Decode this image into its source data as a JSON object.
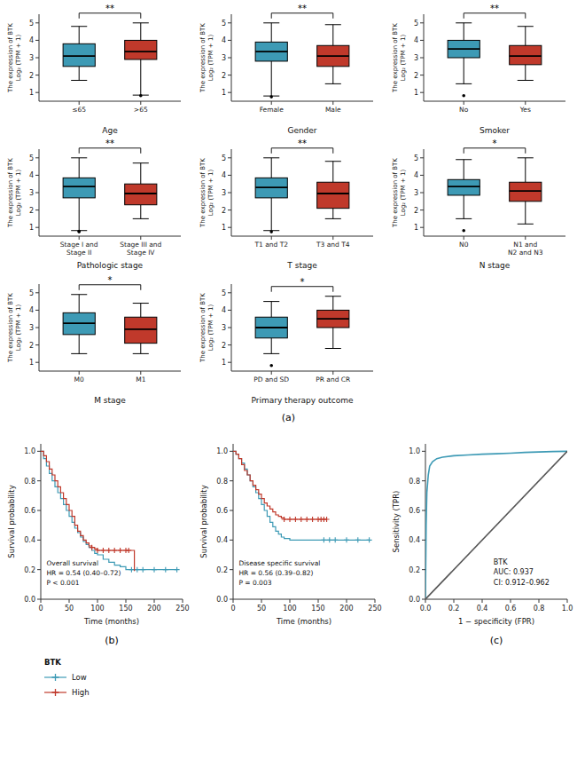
{
  "chart_data": [
    {
      "type": "box",
      "xlabel": "Age",
      "ylabel": "The expression of BTK\nLog₂ (TPM + 1)",
      "panel_label": "(a)",
      "categories": [
        "≤65",
        ">65"
      ],
      "colors": [
        "#3d9ab5",
        "#c0392b"
      ],
      "medians": [
        3.1,
        3.35
      ],
      "q1": [
        2.5,
        2.9
      ],
      "q3": [
        3.8,
        4.0
      ],
      "whislo": [
        1.7,
        0.85
      ],
      "whishi": [
        4.8,
        5.0
      ],
      "fliers": [
        [],
        [
          0.82
        ]
      ],
      "annotations": [
        "**"
      ],
      "ylim": [
        0.5,
        5.5
      ],
      "yticks": [
        1,
        2,
        3,
        4,
        5
      ]
    },
    {
      "type": "box",
      "xlabel": "Gender",
      "ylabel": "The expression of BTK\nLog₂ (TPM + 1)",
      "categories": [
        "Female",
        "Male"
      ],
      "colors": [
        "#3d9ab5",
        "#c0392b"
      ],
      "medians": [
        3.35,
        3.1
      ],
      "q1": [
        2.8,
        2.5
      ],
      "q3": [
        3.9,
        3.7
      ],
      "whislo": [
        0.8,
        1.5
      ],
      "whishi": [
        5.0,
        4.9
      ],
      "fliers": [
        [
          0.75
        ],
        []
      ],
      "annotations": [
        "**"
      ],
      "ylim": [
        0.5,
        5.5
      ],
      "yticks": [
        1,
        2,
        3,
        4,
        5
      ]
    },
    {
      "type": "box",
      "xlabel": "Smoker",
      "ylabel": "The expression of BTK\nLog₂ (TPM + 1)",
      "categories": [
        "No",
        "Yes"
      ],
      "colors": [
        "#3d9ab5",
        "#c0392b"
      ],
      "medians": [
        3.5,
        3.1
      ],
      "q1": [
        3.0,
        2.6
      ],
      "q3": [
        4.0,
        3.7
      ],
      "whislo": [
        1.5,
        1.7
      ],
      "whishi": [
        5.0,
        4.8
      ],
      "fliers": [
        [
          0.82
        ],
        []
      ],
      "annotations": [
        "**"
      ],
      "ylim": [
        0.5,
        5.5
      ],
      "yticks": [
        1,
        2,
        3,
        4,
        5
      ]
    },
    {
      "type": "box",
      "xlabel": "Pathologic stage",
      "ylabel": "The expression of BTK\nLog₂ (TPM + 1)",
      "categories": [
        "Stage I and\nStage II",
        "Stage III and\nStage IV"
      ],
      "colors": [
        "#3d9ab5",
        "#c0392b"
      ],
      "medians": [
        3.35,
        2.95
      ],
      "q1": [
        2.7,
        2.3
      ],
      "q3": [
        3.85,
        3.5
      ],
      "whislo": [
        0.82,
        1.5
      ],
      "whishi": [
        5.0,
        4.7
      ],
      "fliers": [
        [
          0.75,
          0.78
        ],
        []
      ],
      "annotations": [
        "**"
      ],
      "ylim": [
        0.5,
        5.5
      ],
      "yticks": [
        1,
        2,
        3,
        4,
        5
      ]
    },
    {
      "type": "box",
      "xlabel": "T stage",
      "ylabel": "The expression of BTK\nLog₂ (TPM + 1)",
      "categories": [
        "T1 and T2",
        "T3 and T4"
      ],
      "colors": [
        "#3d9ab5",
        "#c0392b"
      ],
      "medians": [
        3.3,
        2.95
      ],
      "q1": [
        2.7,
        2.1
      ],
      "q3": [
        3.85,
        3.6
      ],
      "whislo": [
        0.82,
        1.5
      ],
      "whishi": [
        5.0,
        4.8
      ],
      "fliers": [
        [
          0.75
        ],
        []
      ],
      "annotations": [
        "**"
      ],
      "ylim": [
        0.5,
        5.5
      ],
      "yticks": [
        1,
        2,
        3,
        4,
        5
      ]
    },
    {
      "type": "box",
      "xlabel": "N stage",
      "ylabel": "The expression of BTK\nLog₂ (TPM + 1)",
      "categories": [
        "N0",
        "N1 and\nN2 and N3"
      ],
      "colors": [
        "#3d9ab5",
        "#c0392b"
      ],
      "medians": [
        3.35,
        3.1
      ],
      "q1": [
        2.85,
        2.5
      ],
      "q3": [
        3.75,
        3.6
      ],
      "whislo": [
        1.5,
        1.2
      ],
      "whishi": [
        4.9,
        5.0
      ],
      "fliers": [
        [
          0.82
        ],
        []
      ],
      "annotations": [
        "*"
      ],
      "ylim": [
        0.5,
        5.5
      ],
      "yticks": [
        1,
        2,
        3,
        4,
        5
      ]
    },
    {
      "type": "box",
      "xlabel": "M stage",
      "ylabel": "The expression of BTK\nLog₂ (TPM + 1)",
      "categories": [
        "M0",
        "M1"
      ],
      "colors": [
        "#3d9ab5",
        "#c0392b"
      ],
      "medians": [
        3.25,
        2.9
      ],
      "q1": [
        2.6,
        2.1
      ],
      "q3": [
        3.85,
        3.6
      ],
      "whislo": [
        1.5,
        1.5
      ],
      "whishi": [
        4.9,
        4.4
      ],
      "fliers": [
        [],
        []
      ],
      "annotations": [
        "*"
      ],
      "ylim": [
        0.5,
        5.5
      ],
      "yticks": [
        1,
        2,
        3,
        4,
        5
      ]
    },
    {
      "type": "box",
      "xlabel": "Primary therapy outcome",
      "ylabel": "The expression of BTK\nLog₂ (TPM + 1)",
      "categories": [
        "PD and SD",
        "PR and CR"
      ],
      "colors": [
        "#3d9ab5",
        "#c0392b"
      ],
      "medians": [
        3.0,
        3.5
      ],
      "q1": [
        2.4,
        3.0
      ],
      "q3": [
        3.6,
        4.0
      ],
      "whislo": [
        1.5,
        1.8
      ],
      "whishi": [
        4.5,
        4.8
      ],
      "fliers": [
        [
          0.82
        ],
        []
      ],
      "annotations": [
        "*"
      ],
      "ylim": [
        0.5,
        5.5
      ],
      "yticks": [
        1,
        2,
        3,
        4,
        5
      ]
    },
    {
      "type": "step",
      "xlabel": "Time (months)",
      "ylabel": "Survival probability",
      "panel_label": "(b)",
      "annotations": [
        "Overall survival\nHR = 0.54 (0.40–0.72)\nP < 0.001"
      ],
      "legend": "below",
      "legend_title": "BTK",
      "xlim": [
        0,
        250
      ],
      "ylim": [
        0,
        1.05
      ],
      "xticks": [
        0,
        50,
        100,
        150,
        200,
        250
      ],
      "yticks": [
        {
          "value": 0,
          "label": "0.0"
        },
        0.2,
        0.4,
        0.6,
        0.8,
        {
          "value": 1,
          "label": "1.0"
        }
      ],
      "series": [
        {
          "name": "Low",
          "color": "#3d9ab5",
          "marker": "plus",
          "x": [
            0,
            5,
            10,
            15,
            20,
            25,
            30,
            35,
            40,
            45,
            50,
            55,
            60,
            65,
            70,
            75,
            80,
            85,
            90,
            95,
            100,
            110,
            120,
            130,
            140,
            150,
            160,
            170,
            180,
            200,
            220,
            240
          ],
          "values": [
            1.0,
            0.95,
            0.9,
            0.85,
            0.8,
            0.76,
            0.72,
            0.68,
            0.64,
            0.6,
            0.56,
            0.52,
            0.48,
            0.45,
            0.42,
            0.39,
            0.37,
            0.35,
            0.33,
            0.31,
            0.3,
            0.27,
            0.25,
            0.23,
            0.22,
            0.2,
            0.2,
            0.2,
            0.2,
            0.2,
            0.2,
            0.2
          ],
          "censor_x": [
            160,
            170,
            180,
            200,
            220,
            240
          ],
          "censor_y": [
            0.2,
            0.2,
            0.2,
            0.2,
            0.2,
            0.2
          ]
        },
        {
          "name": "High",
          "color": "#c0392b",
          "marker": "plus",
          "x": [
            0,
            5,
            10,
            15,
            20,
            25,
            30,
            35,
            40,
            45,
            50,
            55,
            60,
            65,
            70,
            75,
            80,
            85,
            90,
            95,
            100,
            110,
            120,
            130,
            140,
            150,
            155,
            160,
            165
          ],
          "values": [
            1.0,
            0.97,
            0.93,
            0.88,
            0.84,
            0.8,
            0.76,
            0.72,
            0.68,
            0.64,
            0.6,
            0.56,
            0.5,
            0.46,
            0.43,
            0.4,
            0.38,
            0.36,
            0.35,
            0.34,
            0.33,
            0.33,
            0.33,
            0.33,
            0.33,
            0.33,
            0.33,
            0.33,
            0.19
          ],
          "censor_x": [
            90,
            100,
            110,
            120,
            130,
            140,
            150,
            155
          ],
          "censor_y": [
            0.35,
            0.33,
            0.33,
            0.33,
            0.33,
            0.33,
            0.33,
            0.33
          ]
        }
      ]
    },
    {
      "type": "step",
      "xlabel": "Time (months)",
      "ylabel": "Survival probability",
      "annotations": [
        "Disease specific survival\nHR = 0.56 (0.39–0.82)\nP = 0.003"
      ],
      "xlim": [
        0,
        250
      ],
      "ylim": [
        0,
        1.05
      ],
      "xticks": [
        0,
        50,
        100,
        150,
        200,
        250
      ],
      "yticks": [
        {
          "value": 0,
          "label": "0.0"
        },
        0.2,
        0.4,
        0.6,
        0.8,
        {
          "value": 1,
          "label": "1.0"
        }
      ],
      "series": [
        {
          "color": "#3d9ab5",
          "marker": "plus",
          "x": [
            0,
            5,
            10,
            15,
            20,
            25,
            30,
            35,
            40,
            45,
            50,
            55,
            60,
            65,
            70,
            75,
            80,
            85,
            90,
            100,
            110,
            120,
            130,
            140,
            150,
            160,
            170,
            180,
            200,
            220,
            240
          ],
          "values": [
            1.0,
            0.98,
            0.95,
            0.92,
            0.88,
            0.84,
            0.8,
            0.76,
            0.72,
            0.68,
            0.64,
            0.6,
            0.56,
            0.52,
            0.49,
            0.46,
            0.44,
            0.42,
            0.41,
            0.4,
            0.4,
            0.4,
            0.4,
            0.4,
            0.4,
            0.4,
            0.4,
            0.4,
            0.4,
            0.4,
            0.4
          ],
          "censor_x": [
            160,
            170,
            180,
            200,
            220,
            240
          ],
          "censor_y": [
            0.4,
            0.4,
            0.4,
            0.4,
            0.4,
            0.4
          ]
        },
        {
          "color": "#c0392b",
          "marker": "plus",
          "x": [
            0,
            5,
            10,
            15,
            20,
            25,
            30,
            35,
            40,
            45,
            50,
            55,
            60,
            65,
            70,
            75,
            80,
            85,
            90,
            95,
            100,
            110,
            120,
            130,
            140,
            150,
            155,
            160,
            165
          ],
          "values": [
            1.0,
            0.98,
            0.95,
            0.91,
            0.87,
            0.84,
            0.8,
            0.77,
            0.74,
            0.71,
            0.68,
            0.65,
            0.63,
            0.61,
            0.59,
            0.57,
            0.56,
            0.55,
            0.54,
            0.54,
            0.54,
            0.54,
            0.54,
            0.54,
            0.54,
            0.54,
            0.54,
            0.54,
            0.54
          ],
          "censor_x": [
            90,
            100,
            110,
            120,
            130,
            140,
            150,
            155,
            160,
            165
          ],
          "censor_y": [
            0.54,
            0.54,
            0.54,
            0.54,
            0.54,
            0.54,
            0.54,
            0.54,
            0.54,
            0.54
          ]
        }
      ]
    },
    {
      "type": "line",
      "xlabel": "1 − specificity (FPR)",
      "ylabel": "Sensitivity (TPR)",
      "panel_label": "(c)",
      "annotations": [
        "BTK\nAUC: 0.937\nCI: 0.912–0.962"
      ],
      "xlim": [
        0,
        1
      ],
      "ylim": [
        0,
        1.05
      ],
      "xticks": [
        {
          "value": 0,
          "label": "0.0"
        },
        0.2,
        0.4,
        0.6,
        0.8,
        {
          "value": 1,
          "label": "1.0"
        }
      ],
      "yticks": [
        {
          "value": 0,
          "label": "0.0"
        },
        0.2,
        0.4,
        0.6,
        0.8,
        {
          "value": 1,
          "label": "1.0"
        }
      ],
      "series": [
        {
          "color": "#3d9ab5",
          "x": [
            0.0,
            0.005,
            0.01,
            0.02,
            0.03,
            0.05,
            0.08,
            0.12,
            0.2,
            0.3,
            0.4,
            0.5,
            0.6,
            0.7,
            0.8,
            0.9,
            1.0
          ],
          "values": [
            0.0,
            0.5,
            0.72,
            0.84,
            0.9,
            0.93,
            0.95,
            0.96,
            0.97,
            0.975,
            0.98,
            0.983,
            0.987,
            0.992,
            0.995,
            0.998,
            1.0
          ]
        },
        {
          "color": "#555555",
          "x": [
            0,
            1
          ],
          "values": [
            0,
            1
          ]
        }
      ]
    }
  ]
}
